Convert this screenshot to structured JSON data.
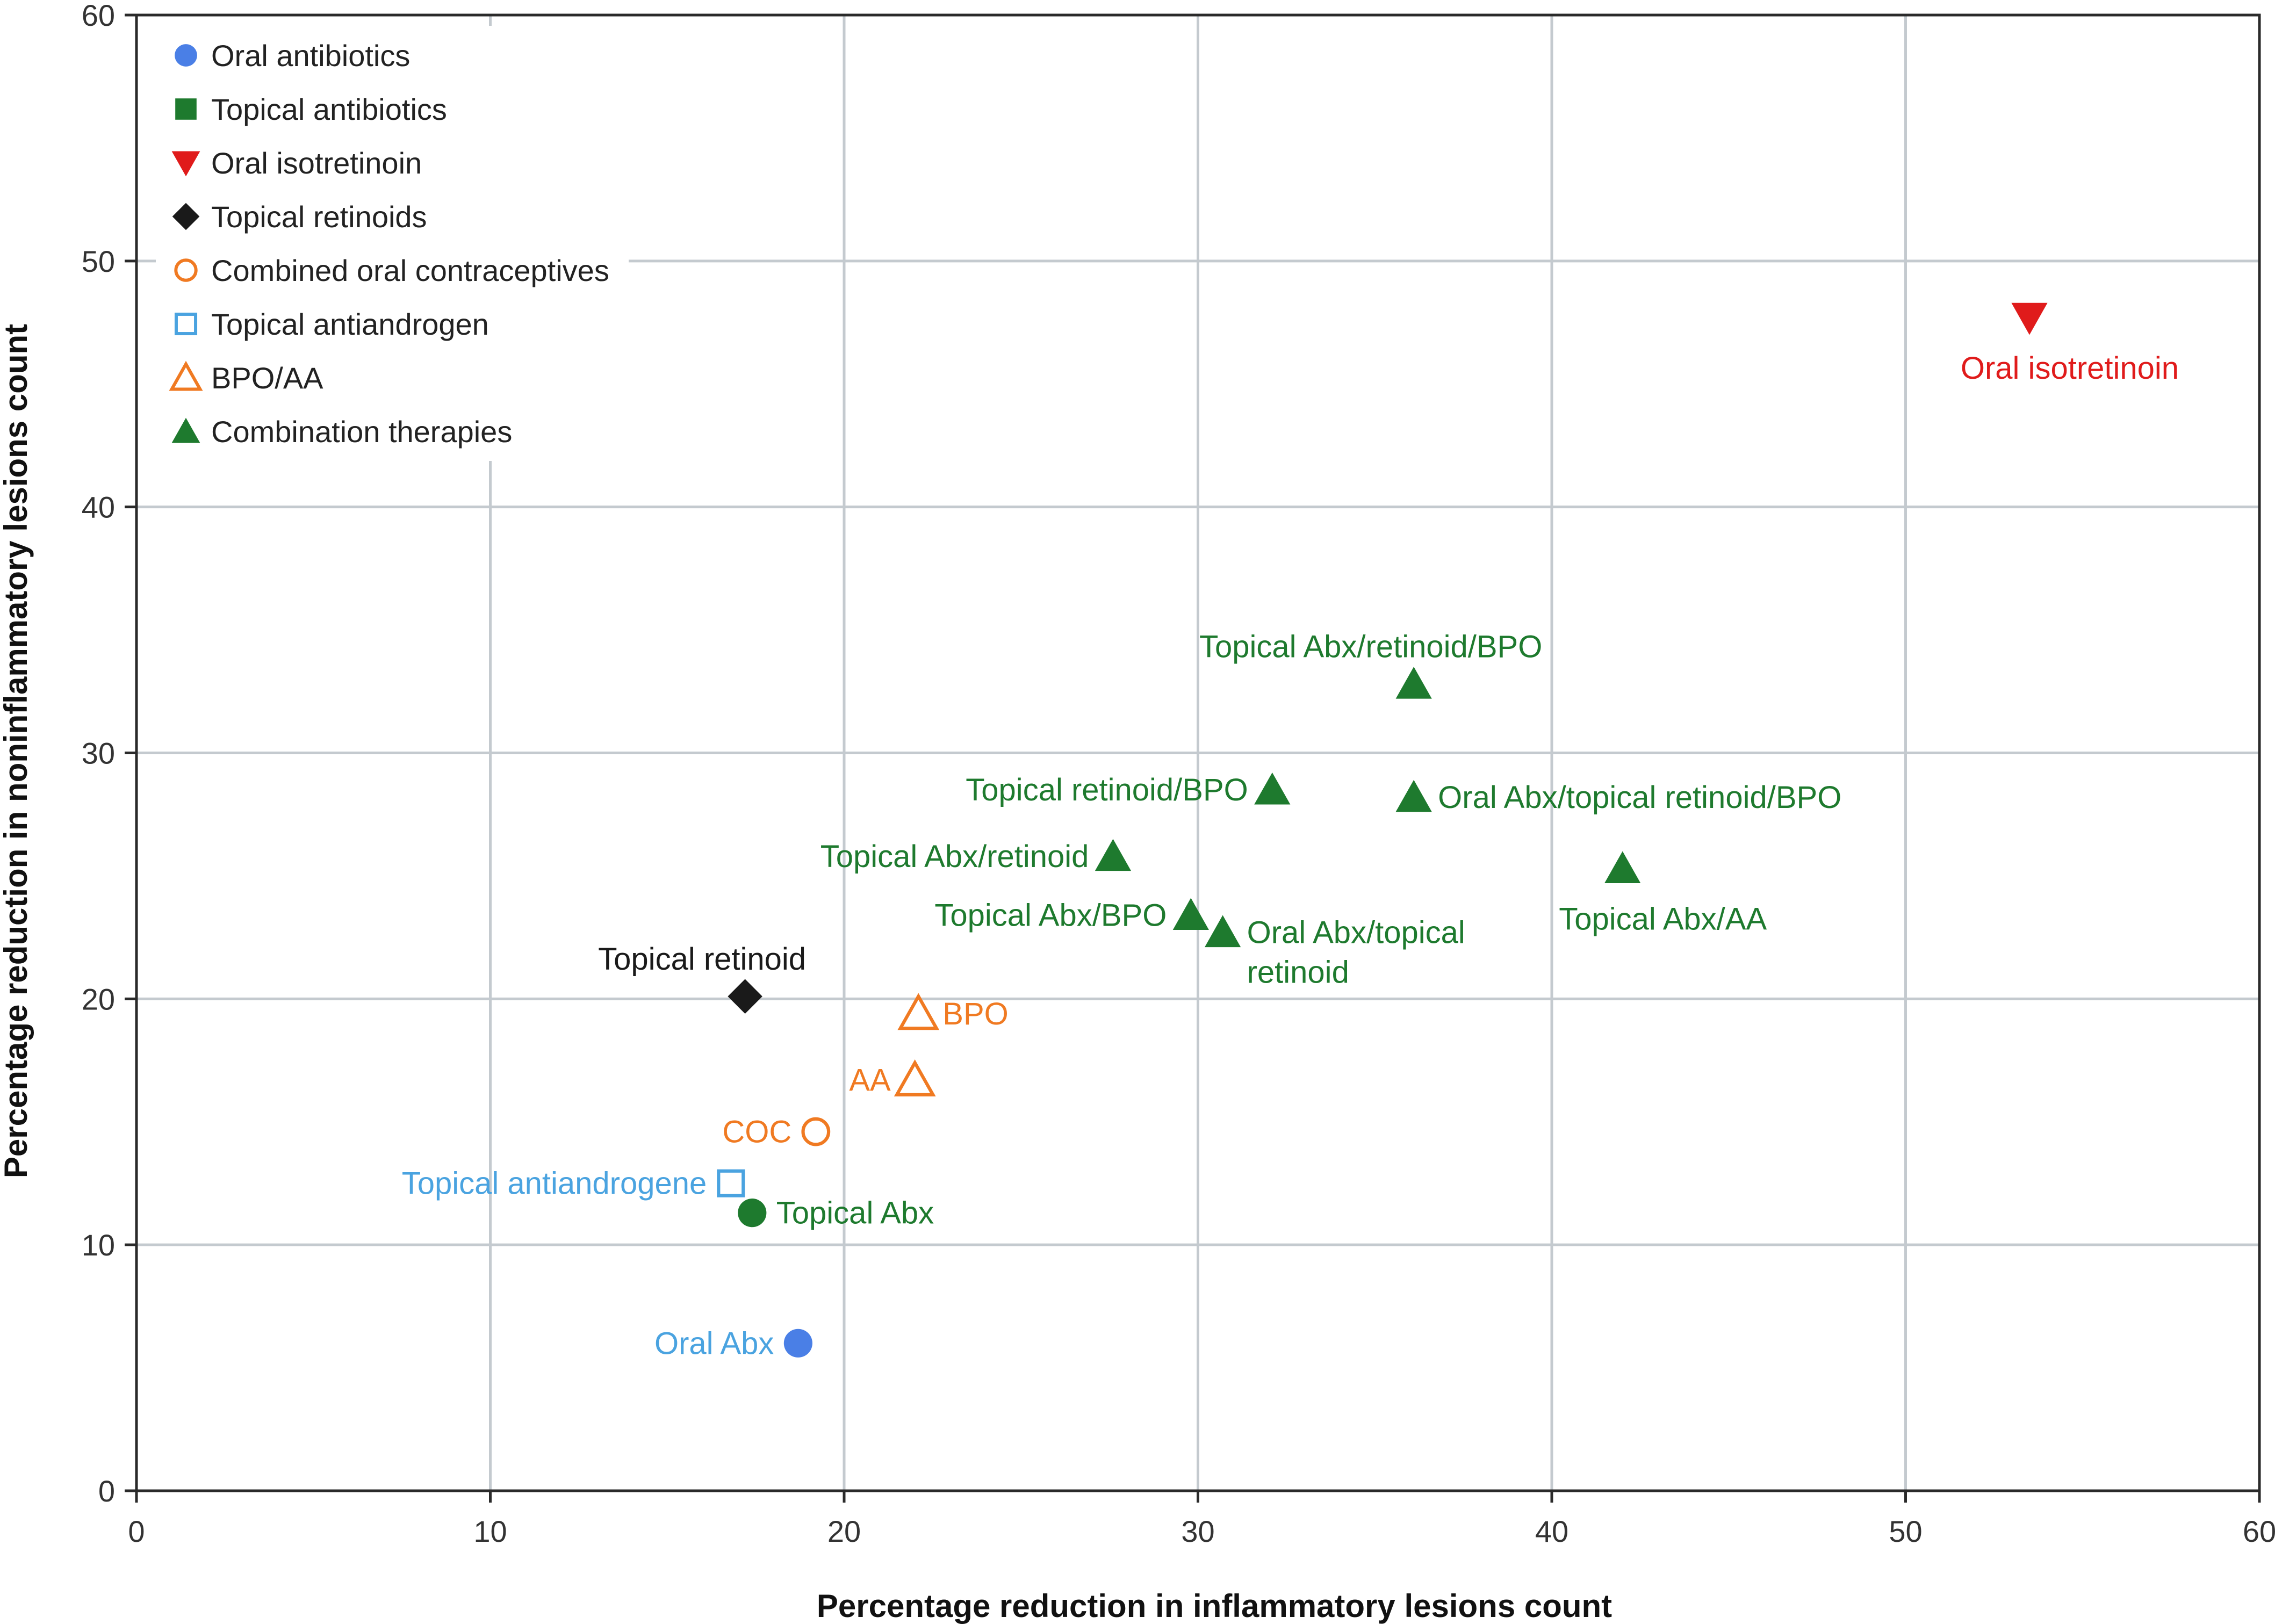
{
  "chart_data": {
    "type": "scatter",
    "xlabel": "Percentage reduction in inflammatory lesions count",
    "ylabel": "Percentage reduction in noninflammatory lesions count",
    "xlim": [
      0,
      60
    ],
    "ylim": [
      0,
      60
    ],
    "xticks": [
      "0",
      "10",
      "20",
      "30",
      "40",
      "50",
      "60"
    ],
    "yticks": [
      "0",
      "10",
      "20",
      "30",
      "40",
      "50",
      "60"
    ],
    "grid": true,
    "legend_position": "top-left",
    "colors": {
      "blue": "#4a7fe6",
      "green": "#1e7a2e",
      "red": "#e01b1b",
      "black": "#1a1a1a",
      "orange": "#f07a22",
      "light_blue": "#4aa3e0"
    },
    "legend": [
      {
        "label": "Oral antibiotics",
        "marker": "circle",
        "color": "#4a7fe6",
        "filled": true
      },
      {
        "label": "Topical antibiotics",
        "marker": "square",
        "color": "#1e7a2e",
        "filled": true
      },
      {
        "label": "Oral isotretinoin",
        "marker": "triangle-down",
        "color": "#e01b1b",
        "filled": true
      },
      {
        "label": "Topical retinoids",
        "marker": "diamond",
        "color": "#1a1a1a",
        "filled": true
      },
      {
        "label": "Combined oral contraceptives",
        "marker": "circle",
        "color": "#f07a22",
        "filled": false
      },
      {
        "label": "Topical antiandrogen",
        "marker": "square",
        "color": "#4aa3e0",
        "filled": false
      },
      {
        "label": "BPO/AA",
        "marker": "triangle-up",
        "color": "#f07a22",
        "filled": false
      },
      {
        "label": "Combination therapies",
        "marker": "triangle-up",
        "color": "#1e7a2e",
        "filled": true
      }
    ],
    "points": [
      {
        "label": "Oral isotretinoin",
        "x": 53.5,
        "y": 47.7,
        "marker": "triangle-down",
        "color": "#e01b1b",
        "filled": true,
        "label_pos": "below",
        "label_color": "#e01b1b"
      },
      {
        "label": "Topical Abx/retinoid/BPO",
        "x": 36.1,
        "y": 32.8,
        "marker": "triangle-up",
        "color": "#1e7a2e",
        "filled": true,
        "label_pos": "above",
        "label_color": "#1e7a2e"
      },
      {
        "label": "Topical retinoid/BPO",
        "x": 32.1,
        "y": 28.5,
        "marker": "triangle-up",
        "color": "#1e7a2e",
        "filled": true,
        "label_pos": "left",
        "label_color": "#1e7a2e"
      },
      {
        "label": "Oral Abx/topical retinoid/BPO",
        "x": 36.1,
        "y": 28.2,
        "marker": "triangle-up",
        "color": "#1e7a2e",
        "filled": true,
        "label_pos": "right",
        "label_color": "#1e7a2e"
      },
      {
        "label": "Topical Abx/retinoid",
        "x": 27.6,
        "y": 25.8,
        "marker": "triangle-up",
        "color": "#1e7a2e",
        "filled": true,
        "label_pos": "left",
        "label_color": "#1e7a2e"
      },
      {
        "label": "Topical Abx/AA",
        "x": 42.0,
        "y": 25.3,
        "marker": "triangle-up",
        "color": "#1e7a2e",
        "filled": true,
        "label_pos": "below",
        "label_color": "#1e7a2e"
      },
      {
        "label": "Topical Abx/BPO",
        "x": 29.8,
        "y": 23.4,
        "marker": "triangle-up",
        "color": "#1e7a2e",
        "filled": true,
        "label_pos": "left",
        "label_color": "#1e7a2e"
      },
      {
        "label": "Oral Abx/topical retinoid",
        "label_lines": [
          "Oral Abx/topical",
          "retinoid"
        ],
        "x": 30.7,
        "y": 22.7,
        "marker": "triangle-up",
        "color": "#1e7a2e",
        "filled": true,
        "label_pos": "right-multiline",
        "label_color": "#1e7a2e"
      },
      {
        "label": "Topical retinoid",
        "x": 17.2,
        "y": 20.1,
        "marker": "diamond",
        "color": "#1a1a1a",
        "filled": true,
        "label_pos": "above",
        "label_color": "#1a1a1a"
      },
      {
        "label": "BPO",
        "x": 22.1,
        "y": 19.4,
        "marker": "triangle-up",
        "color": "#f07a22",
        "filled": false,
        "label_pos": "right",
        "label_color": "#f07a22"
      },
      {
        "label": "AA",
        "x": 22.0,
        "y": 16.7,
        "marker": "triangle-up",
        "color": "#f07a22",
        "filled": false,
        "label_pos": "left",
        "label_color": "#f07a22"
      },
      {
        "label": "COC",
        "x": 19.2,
        "y": 14.6,
        "marker": "circle",
        "color": "#f07a22",
        "filled": false,
        "label_pos": "left",
        "label_color": "#f07a22"
      },
      {
        "label": "Topical antiandrogene",
        "x": 16.8,
        "y": 12.5,
        "marker": "square",
        "color": "#4aa3e0",
        "filled": false,
        "label_pos": "left",
        "label_color": "#4aa3e0"
      },
      {
        "label": "Topical Abx",
        "x": 17.4,
        "y": 11.3,
        "marker": "circle",
        "color": "#1e7a2e",
        "filled": true,
        "label_pos": "right",
        "label_color": "#1e7a2e"
      },
      {
        "label": "Oral Abx",
        "x": 18.7,
        "y": 6.0,
        "marker": "circle",
        "color": "#4a7fe6",
        "filled": true,
        "label_pos": "left",
        "label_color": "#4aa3e0"
      }
    ]
  }
}
